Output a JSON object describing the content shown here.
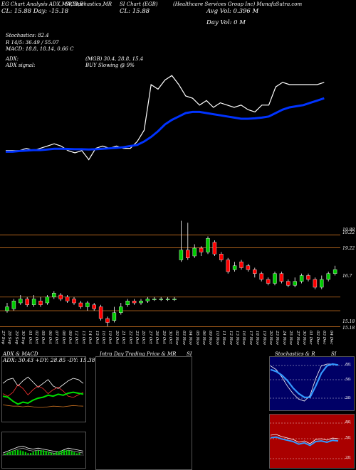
{
  "header": {
    "top_left_lines": [
      "EG Chart Analysis ADX,MACD,B",
      "CL: 15.88  Day: -15.18"
    ],
    "top_mid": "SI,Stochastics,MR",
    "top_mid2": "SI Chart (EGB)",
    "top_mid3": "CL: 15.88",
    "top_right": "(Healthcare Services Group Inc) MunafaSutra.com",
    "top_right2": "Avg Vol: 0.396  M",
    "top_right3": "Day Vol: 0  M"
  },
  "stats": {
    "stochastics": "Stochastics: 82.4",
    "r_line": "R 14/5: 36.49 / 55.07",
    "macd": "MACD: 18.8, 18.14, 0.66  C",
    "adx": "ADX:",
    "adx_vals": "(MGB) 30.4, 28.8, 15.4",
    "adx_signal": "ADX  signal:",
    "signal_text": "BUY Slowing @ 9%"
  },
  "price_levels": [
    "19.88",
    "19.22",
    "16.7",
    "15.18",
    "15.18"
  ],
  "price_levels_top": "19.22",
  "dates": [
    "27 Sep",
    "28 Sep",
    "29 Sep",
    "30 Sep",
    "01 Oct",
    "02 Oct",
    "05 Oct",
    "06 Oct",
    "07 Oct",
    "08 Oct",
    "09 Oct",
    "12 Oct",
    "13 Oct",
    "14 Oct",
    "15 Oct",
    "16 Oct",
    "19 Oct",
    "20 Oct",
    "21 Oct",
    "22 Oct",
    "23 Oct",
    "26 Oct",
    "27 Oct",
    "28 Oct",
    "29 Oct",
    "30 Oct",
    "02 Nov",
    "03 Nov",
    "04 Nov",
    "05 Nov",
    "06 Nov",
    "09 Nov",
    "10 Nov",
    "11 Nov",
    "12 Nov",
    "13 Nov",
    "16 Nov",
    "17 Nov",
    "18 Nov",
    "19 Nov",
    "20 Nov",
    "23 Nov",
    "24 Nov",
    "25 Nov",
    "27 Nov",
    "30 Nov",
    "01 Dec",
    "02 Dec",
    "03 Dec",
    "04 Dec"
  ],
  "panels": {
    "adx_title": "ADX  & MACD",
    "adx_readout": "ADX: 30.43  +DY: 28.85  -DY: 15.38",
    "intra_title": "Intra  Day Trading Price  & MR",
    "intra_si": "SI",
    "stoch_title": "Stochastics & R",
    "stoch_si": "SI",
    "stoch_levels": [
      "80",
      "50",
      "20"
    ],
    "mr_levels": [
      "80",
      "50",
      "20"
    ]
  },
  "colors": {
    "up": "#00cc00",
    "down": "#ff0000",
    "ma": "#0033ff",
    "level": "#c87020",
    "mr_bg": "#aa0000",
    "stoch_bg": "#000066"
  },
  "chart_data": {
    "type": "candlestick",
    "y_levels": [
      19.88,
      19.22,
      16.7,
      15.18
    ],
    "candles": [
      {
        "o": 16.0,
        "c": 16.2,
        "h": 16.4,
        "l": 15.9
      },
      {
        "o": 16.1,
        "c": 16.5,
        "h": 16.6,
        "l": 16.0
      },
      {
        "o": 16.4,
        "c": 16.6,
        "h": 16.8,
        "l": 16.3
      },
      {
        "o": 16.6,
        "c": 16.3,
        "h": 16.7,
        "l": 16.2
      },
      {
        "o": 16.3,
        "c": 16.6,
        "h": 16.8,
        "l": 16.2
      },
      {
        "o": 16.5,
        "c": 16.3,
        "h": 16.7,
        "l": 16.2
      },
      {
        "o": 16.4,
        "c": 16.7,
        "h": 16.8,
        "l": 16.3
      },
      {
        "o": 16.7,
        "c": 16.9,
        "h": 17.0,
        "l": 16.6
      },
      {
        "o": 16.8,
        "c": 16.6,
        "h": 16.9,
        "l": 16.5
      },
      {
        "o": 16.7,
        "c": 16.5,
        "h": 16.8,
        "l": 16.4
      },
      {
        "o": 16.6,
        "c": 16.4,
        "h": 16.7,
        "l": 16.3
      },
      {
        "o": 16.4,
        "c": 16.2,
        "h": 16.5,
        "l": 16.1
      },
      {
        "o": 16.2,
        "c": 16.4,
        "h": 16.5,
        "l": 16.0
      },
      {
        "o": 16.3,
        "c": 16.1,
        "h": 16.4,
        "l": 16.0
      },
      {
        "o": 16.2,
        "c": 15.6,
        "h": 16.3,
        "l": 15.5
      },
      {
        "o": 15.6,
        "c": 15.4,
        "h": 15.7,
        "l": 15.2
      },
      {
        "o": 15.5,
        "c": 15.9,
        "h": 16.2,
        "l": 15.4
      },
      {
        "o": 15.9,
        "c": 16.2,
        "h": 16.4,
        "l": 15.8
      },
      {
        "o": 16.3,
        "c": 16.5,
        "h": 16.6,
        "l": 16.2
      },
      {
        "o": 16.5,
        "c": 16.4,
        "h": 16.6,
        "l": 16.3
      },
      {
        "o": 16.4,
        "c": 16.5,
        "h": 16.6,
        "l": 16.3
      },
      {
        "o": 16.5,
        "c": 16.6,
        "h": 16.7,
        "l": 16.4
      },
      {
        "o": 16.6,
        "c": 16.6,
        "h": 16.7,
        "l": 16.5
      },
      {
        "o": 16.6,
        "c": 16.6,
        "h": 16.7,
        "l": 16.5
      },
      {
        "o": 16.6,
        "c": 16.6,
        "h": 16.7,
        "l": 16.5
      },
      {
        "o": 16.6,
        "c": 16.6,
        "h": 16.7,
        "l": 16.5
      },
      {
        "o": 18.6,
        "c": 19.1,
        "h": 20.6,
        "l": 18.5
      },
      {
        "o": 19.1,
        "c": 18.7,
        "h": 20.5,
        "l": 18.6
      },
      {
        "o": 18.8,
        "c": 19.2,
        "h": 19.4,
        "l": 18.7
      },
      {
        "o": 19.2,
        "c": 19.0,
        "h": 19.3,
        "l": 18.8
      },
      {
        "o": 19.0,
        "c": 19.7,
        "h": 19.8,
        "l": 18.9
      },
      {
        "o": 19.5,
        "c": 18.9,
        "h": 19.6,
        "l": 18.8
      },
      {
        "o": 18.9,
        "c": 18.6,
        "h": 19.0,
        "l": 18.5
      },
      {
        "o": 18.6,
        "c": 18.0,
        "h": 18.7,
        "l": 17.9
      },
      {
        "o": 18.1,
        "c": 18.3,
        "h": 18.5,
        "l": 18.0
      },
      {
        "o": 18.5,
        "c": 18.2,
        "h": 18.6,
        "l": 18.1
      },
      {
        "o": 18.3,
        "c": 18.1,
        "h": 18.4,
        "l": 18.0
      },
      {
        "o": 18.1,
        "c": 17.9,
        "h": 18.2,
        "l": 17.7
      },
      {
        "o": 17.9,
        "c": 17.6,
        "h": 18.0,
        "l": 17.5
      },
      {
        "o": 17.6,
        "c": 17.4,
        "h": 17.7,
        "l": 17.3
      },
      {
        "o": 17.4,
        "c": 17.9,
        "h": 18.0,
        "l": 17.3
      },
      {
        "o": 17.9,
        "c": 17.5,
        "h": 18.0,
        "l": 17.4
      },
      {
        "o": 17.5,
        "c": 17.3,
        "h": 17.6,
        "l": 17.2
      },
      {
        "o": 17.3,
        "c": 17.5,
        "h": 17.7,
        "l": 17.2
      },
      {
        "o": 17.5,
        "c": 17.8,
        "h": 17.9,
        "l": 17.4
      },
      {
        "o": 17.8,
        "c": 17.6,
        "h": 17.9,
        "l": 17.5
      },
      {
        "o": 17.6,
        "c": 17.2,
        "h": 17.7,
        "l": 17.1
      },
      {
        "o": 17.2,
        "c": 17.6,
        "h": 17.8,
        "l": 17.1
      },
      {
        "o": 17.6,
        "c": 17.9,
        "h": 18.0,
        "l": 17.5
      },
      {
        "o": 17.9,
        "c": 18.1,
        "h": 18.3,
        "l": 17.8
      }
    ],
    "price_line": [
      14.6,
      14.6,
      14.6,
      14.7,
      14.6,
      14.7,
      14.8,
      14.9,
      14.8,
      14.6,
      14.5,
      14.6,
      14.2,
      14.7,
      14.8,
      14.7,
      14.8,
      14.7,
      14.7,
      15.0,
      15.5,
      17.5,
      17.3,
      17.7,
      17.9,
      17.5,
      17.0,
      16.9,
      16.6,
      16.8,
      16.5,
      16.7,
      16.6,
      16.5,
      16.6,
      16.4,
      16.3,
      16.6,
      16.6,
      17.4,
      17.6,
      17.5,
      17.5,
      17.5,
      17.5,
      17.5,
      17.6
    ],
    "ma_line": [
      14.55,
      14.55,
      14.58,
      14.6,
      14.62,
      14.62,
      14.65,
      14.68,
      14.68,
      14.67,
      14.66,
      14.66,
      14.65,
      14.66,
      14.68,
      14.7,
      14.72,
      14.75,
      14.8,
      14.85,
      15.0,
      15.2,
      15.45,
      15.75,
      15.95,
      16.1,
      16.25,
      16.3,
      16.3,
      16.25,
      16.2,
      16.15,
      16.1,
      16.05,
      16.0,
      16.0,
      16.02,
      16.05,
      16.1,
      16.25,
      16.4,
      16.5,
      16.55,
      16.6,
      16.7,
      16.8,
      16.9
    ]
  }
}
